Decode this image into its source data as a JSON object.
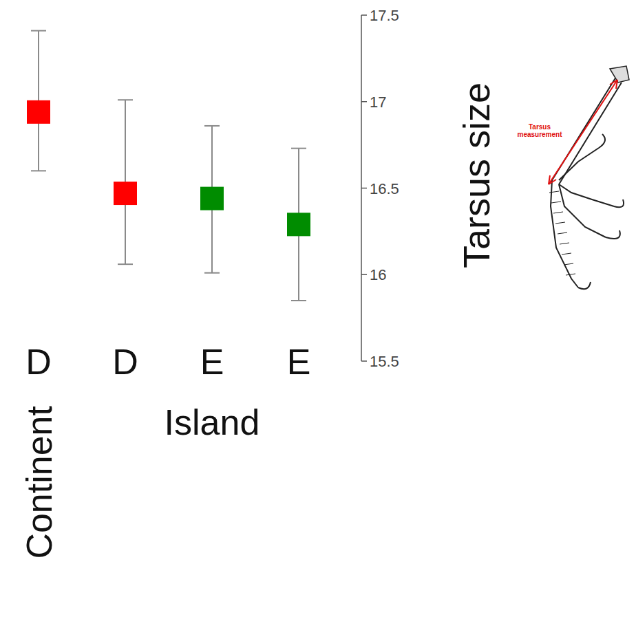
{
  "chart_data": {
    "type": "errorbar",
    "categories": [
      "D",
      "D",
      "E",
      "E"
    ],
    "group_labels": [
      "Continent",
      "Island",
      "Island",
      "Island"
    ],
    "values": [
      16.94,
      16.47,
      16.44,
      16.29
    ],
    "lower": [
      16.6,
      16.06,
      16.01,
      15.85
    ],
    "upper": [
      17.41,
      17.01,
      16.86,
      16.73
    ],
    "colors": [
      "#ff0000",
      "#ff0000",
      "#008c00",
      "#008c00"
    ],
    "marker": "square",
    "ylim": [
      15.5,
      17.5
    ],
    "yticks": [
      15.5,
      16,
      16.5,
      17,
      17.5
    ],
    "y_label": "Tarsus size",
    "annotation": "Tarsus measurement",
    "grid": false
  }
}
